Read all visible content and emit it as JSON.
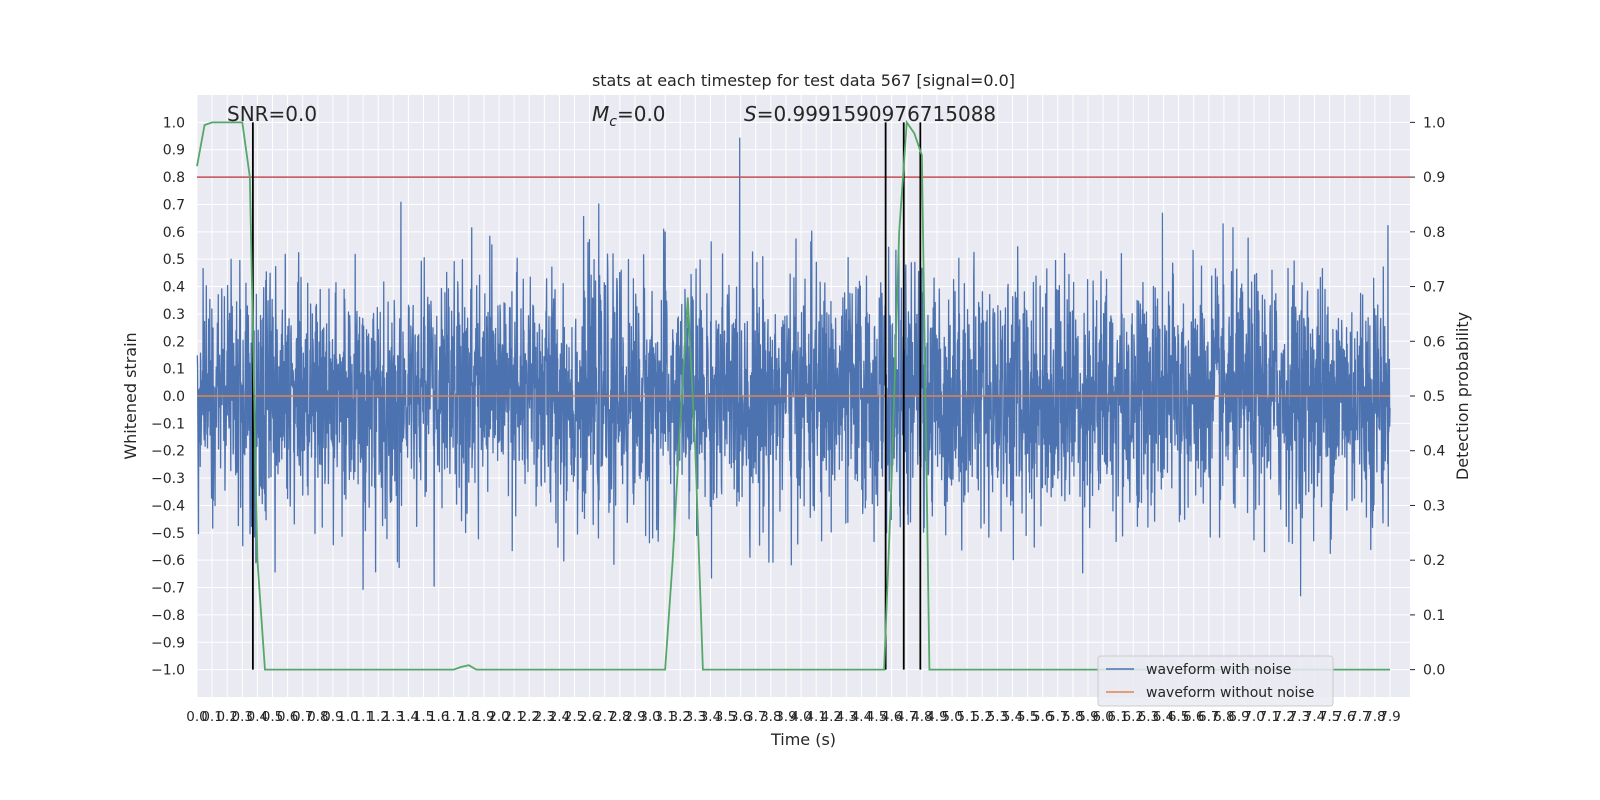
{
  "chart_data": {
    "type": "line",
    "title": "stats at each timestep for test data 567 [signal=0.0]",
    "xlabel": "Time (s)",
    "ylabel": "Whitened strain",
    "ylabel_right": "Detection probability",
    "xlim": [
      0.0,
      7.9
    ],
    "ylim": [
      -1.1,
      1.1
    ],
    "ylim_right": [
      -0.05,
      1.05
    ],
    "grid": true,
    "legend_position": "lower-right",
    "annotations": {
      "snr": "SNR=0.0",
      "mc_symbol": "M",
      "mc_sub": "c",
      "mc_value": "=0.0",
      "s_symbol": "S",
      "s_value": "=0.9991590976715088"
    },
    "x_tick_labels": [
      "0.0",
      "0.1",
      "0.2",
      "0.3",
      "0.4",
      "0.5",
      "0.6",
      "0.7",
      "0.8",
      "0.9",
      "1.0",
      "1.1",
      "1.2",
      "1.3",
      "1.4",
      "1.5",
      "1.6",
      "1.7",
      "1.8",
      "1.9",
      "2.0",
      "2.1",
      "2.2",
      "2.3",
      "2.4",
      "2.5",
      "2.6",
      "2.7",
      "2.8",
      "2.9",
      "3.0",
      "3.1",
      "3.2",
      "3.3",
      "3.4",
      "3.5",
      "3.6",
      "3.7",
      "3.8",
      "3.9",
      "4.0",
      "4.1",
      "4.2",
      "4.3",
      "4.4",
      "4.5",
      "4.6",
      "4.7",
      "4.8",
      "4.9",
      "5.0",
      "5.1",
      "5.2",
      "5.3",
      "5.4",
      "5.5",
      "5.6",
      "5.7",
      "5.8",
      "5.9",
      "6.0",
      "6.1",
      "6.2",
      "6.3",
      "6.4",
      "6.5",
      "6.6",
      "6.7",
      "6.8",
      "6.9",
      "7.0",
      "7.1",
      "7.2",
      "7.3",
      "7.4",
      "7.5",
      "7.6",
      "7.7",
      "7.8",
      "7.9"
    ],
    "y_tick_labels": [
      "1.0",
      "0.9",
      "0.8",
      "0.7",
      "0.6",
      "0.5",
      "0.4",
      "0.3",
      "0.2",
      "0.1",
      "0.0",
      "−0.1",
      "−0.2",
      "−0.3",
      "−0.4",
      "−0.5",
      "−0.6",
      "−0.7",
      "−0.8",
      "−0.9",
      "−1.0"
    ],
    "y_right_tick_labels": [
      "1.0",
      "0.9",
      "0.8",
      "0.7",
      "0.6",
      "0.5",
      "0.4",
      "0.3",
      "0.2",
      "0.1",
      "0.0"
    ],
    "series": [
      {
        "name": "waveform with noise",
        "color": "#4c72b0",
        "kind": "noise",
        "approx_envelope": [
          -0.85,
          0.95
        ]
      },
      {
        "name": "waveform without noise",
        "color": "#dd8452",
        "values_constant": 0.0
      },
      {
        "color": "#55a868",
        "axis": "right",
        "x": [
          0.0,
          0.05,
          0.1,
          0.15,
          0.2,
          0.25,
          0.3,
          0.35,
          0.4,
          0.45,
          0.5,
          1.0,
          1.5,
          1.7,
          1.75,
          1.8,
          1.85,
          2.0,
          2.5,
          3.0,
          3.1,
          3.15,
          3.2,
          3.25,
          3.3,
          3.35,
          4.0,
          4.5,
          4.55,
          4.6,
          4.65,
          4.7,
          4.75,
          4.8,
          4.85,
          5.0,
          6.0,
          7.0,
          7.9
        ],
        "y": [
          0.92,
          0.995,
          1.0,
          1.0,
          1.0,
          1.0,
          1.0,
          0.9,
          0.2,
          0.0,
          0.0,
          0.0,
          0.0,
          0.0,
          0.005,
          0.008,
          0.0,
          0.0,
          0.0,
          0.0,
          0.0,
          0.2,
          0.45,
          0.68,
          0.4,
          0.0,
          0.0,
          0.0,
          0.0,
          0.35,
          0.8,
          1.0,
          0.98,
          0.94,
          0.0,
          0.0,
          0.0,
          0.0,
          0.0
        ]
      }
    ],
    "threshold_line": {
      "axis": "right",
      "value": 0.9,
      "color": "#c44e52"
    },
    "vertical_markers": {
      "color": "#000000",
      "x": [
        0.37,
        4.56,
        4.68,
        4.79
      ]
    }
  }
}
